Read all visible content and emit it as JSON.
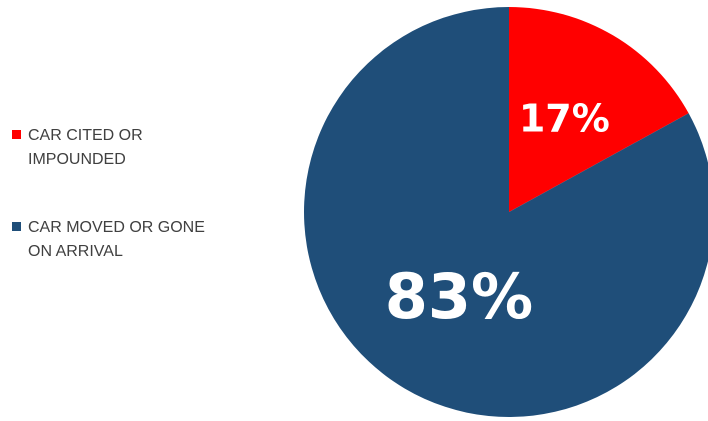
{
  "chart_data": {
    "type": "pie",
    "categories": [
      "CAR CITED OR IMPOUNDED",
      "CAR MOVED OR GONE ON ARRIVAL"
    ],
    "values": [
      17,
      83
    ],
    "data_labels": [
      "17%",
      "83%"
    ],
    "colors": [
      "#ff0000",
      "#1f4e79"
    ],
    "legend_position": "left",
    "start_angle": "12 o'clock, clockwise"
  }
}
